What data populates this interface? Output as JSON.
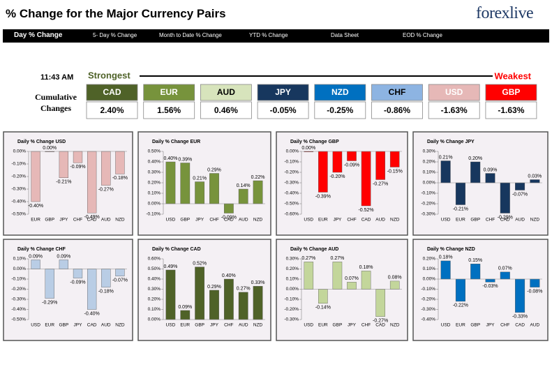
{
  "header": {
    "title": "% Change for the Major Currency Pairs",
    "logo": "forexlive"
  },
  "nav": [
    "Day % Change",
    "5- Day % Change",
    "Month to Date % Change",
    "YTD % Change",
    "Data Sheet",
    "EOD % Change"
  ],
  "summary": {
    "time": "11:43 AM",
    "strongest": "Strongest",
    "weakest": "Weakest",
    "label": "Cumulative Changes",
    "currencies": [
      {
        "name": "CAD",
        "change": "2.40%",
        "color": "#4f6228",
        "text_color": "#ffffff"
      },
      {
        "name": "EUR",
        "change": "1.56%",
        "color": "#77933c",
        "text_color": "#ffffff"
      },
      {
        "name": "AUD",
        "change": "0.46%",
        "color": "#d7e4bc",
        "text_color": "#000000"
      },
      {
        "name": "JPY",
        "change": "-0.05%",
        "color": "#17375e",
        "text_color": "#ffffff"
      },
      {
        "name": "NZD",
        "change": "-0.25%",
        "color": "#0070c0",
        "text_color": "#ffffff"
      },
      {
        "name": "CHF",
        "change": "-0.86%",
        "color": "#8db4e2",
        "text_color": "#000000"
      },
      {
        "name": "USD",
        "change": "-1.63%",
        "color": "#e6b8b7",
        "text_color": "#ffffff"
      },
      {
        "name": "GBP",
        "change": "-1.63%",
        "color": "#ff0000",
        "text_color": "#ffffff"
      }
    ]
  },
  "chart_data": [
    {
      "type": "bar",
      "title": "Daily % Change USD",
      "color": "#e6b8b7",
      "categories": [
        "EUR",
        "GBP",
        "JPY",
        "CHF",
        "CAD",
        "AUD",
        "NZD"
      ],
      "values": [
        -0.4,
        0.0,
        -0.21,
        -0.09,
        -0.49,
        -0.27,
        -0.18
      ],
      "value_labels": [
        "-0.40%",
        "0.00%",
        "-0.21%",
        "-0.09%",
        "-0.49%",
        "-0.27%",
        "-0.18%"
      ],
      "ylim": [
        -0.5,
        0
      ],
      "yticks": [
        {
          "value": 0,
          "label": "0.00%"
        },
        {
          "value": -0.1,
          "label": "-0.10%"
        },
        {
          "value": -0.2,
          "label": "-0.20%"
        },
        {
          "value": -0.3,
          "label": "-0.30%"
        },
        {
          "value": -0.4,
          "label": "-0.40%"
        },
        {
          "value": -0.5,
          "label": "-0.50%"
        }
      ]
    },
    {
      "type": "bar",
      "title": "Daily % Change EUR",
      "color": "#77933c",
      "categories": [
        "USD",
        "GBP",
        "JPY",
        "CHF",
        "CAD",
        "AUD",
        "NZD"
      ],
      "values": [
        0.4,
        0.39,
        0.21,
        0.29,
        -0.09,
        0.14,
        0.22
      ],
      "value_labels": [
        "0.40%",
        "0.39%",
        "0.21%",
        "0.29%",
        "-0.09%",
        "0.14%",
        "0.22%"
      ],
      "ylim": [
        -0.1,
        0.5
      ],
      "yticks": [
        {
          "value": 0.5,
          "label": "0.50%"
        },
        {
          "value": 0.4,
          "label": "0.40%"
        },
        {
          "value": 0.3,
          "label": "0.30%"
        },
        {
          "value": 0.2,
          "label": "0.20%"
        },
        {
          "value": 0.1,
          "label": "0.10%"
        },
        {
          "value": 0,
          "label": "0.00%"
        },
        {
          "value": -0.1,
          "label": "-0.10%"
        }
      ]
    },
    {
      "type": "bar",
      "title": "Daily % Change GBP",
      "color": "#ff0000",
      "categories": [
        "USD",
        "EUR",
        "JPY",
        "CHF",
        "CAD",
        "AUD",
        "NZD"
      ],
      "values": [
        0.0,
        -0.39,
        -0.2,
        -0.09,
        -0.52,
        -0.27,
        -0.15
      ],
      "value_labels": [
        "0.00%",
        "-0.39%",
        "-0.20%",
        "-0.09%",
        "-0.52%",
        "-0.27%",
        "-0.15%"
      ],
      "ylim": [
        -0.6,
        0
      ],
      "yticks": [
        {
          "value": 0,
          "label": "0.00%"
        },
        {
          "value": -0.1,
          "label": "-0.10%"
        },
        {
          "value": -0.2,
          "label": "-0.20%"
        },
        {
          "value": -0.3,
          "label": "-0.30%"
        },
        {
          "value": -0.4,
          "label": "-0.40%"
        },
        {
          "value": -0.5,
          "label": "-0.50%"
        },
        {
          "value": -0.6,
          "label": "-0.60%"
        }
      ]
    },
    {
      "type": "bar",
      "title": "Daily % Change JPY",
      "color": "#17375e",
      "categories": [
        "USD",
        "EUR",
        "GBP",
        "CHF",
        "CAD",
        "AUD",
        "NZD"
      ],
      "values": [
        0.21,
        -0.21,
        0.2,
        0.09,
        -0.29,
        -0.07,
        0.03
      ],
      "value_labels": [
        "0.21%",
        "-0.21%",
        "0.20%",
        "0.09%",
        "-0.29%",
        "-0.07%",
        "0.03%"
      ],
      "ylim": [
        -0.3,
        0.3
      ],
      "yticks": [
        {
          "value": 0.3,
          "label": "0.30%"
        },
        {
          "value": 0.2,
          "label": "0.20%"
        },
        {
          "value": 0.1,
          "label": "0.10%"
        },
        {
          "value": 0,
          "label": "0.00%"
        },
        {
          "value": -0.1,
          "label": "-0.10%"
        },
        {
          "value": -0.2,
          "label": "-0.20%"
        },
        {
          "value": -0.3,
          "label": "-0.30%"
        }
      ]
    },
    {
      "type": "bar",
      "title": "Daily % Change CHF",
      "color": "#b9cde5",
      "categories": [
        "USD",
        "EUR",
        "GBP",
        "JPY",
        "CAD",
        "AUD",
        "NZD"
      ],
      "values": [
        0.09,
        -0.29,
        0.09,
        -0.09,
        -0.4,
        -0.18,
        -0.07
      ],
      "value_labels": [
        "0.09%",
        "-0.29%",
        "0.09%",
        "-0.09%",
        "-0.40%",
        "-0.18%",
        "-0.07%"
      ],
      "ylim": [
        -0.5,
        0.1
      ],
      "yticks": [
        {
          "value": 0.1,
          "label": "0.10%"
        },
        {
          "value": 0,
          "label": "0.00%"
        },
        {
          "value": -0.1,
          "label": "-0.10%"
        },
        {
          "value": -0.2,
          "label": "-0.20%"
        },
        {
          "value": -0.3,
          "label": "-0.30%"
        },
        {
          "value": -0.4,
          "label": "-0.40%"
        },
        {
          "value": -0.5,
          "label": "-0.50%"
        }
      ]
    },
    {
      "type": "bar",
      "title": "Daily % Change CAD",
      "color": "#4f6228",
      "categories": [
        "USD",
        "EUR",
        "GBP",
        "JPY",
        "CHF",
        "AUD",
        "NZD"
      ],
      "values": [
        0.49,
        0.09,
        0.52,
        0.29,
        0.4,
        0.27,
        0.33
      ],
      "value_labels": [
        "0.49%",
        "0.09%",
        "0.52%",
        "0.29%",
        "0.40%",
        "0.27%",
        "0.33%"
      ],
      "ylim": [
        0,
        0.6
      ],
      "yticks": [
        {
          "value": 0.6,
          "label": "0.60%"
        },
        {
          "value": 0.5,
          "label": "0.50%"
        },
        {
          "value": 0.4,
          "label": "0.40%"
        },
        {
          "value": 0.3,
          "label": "0.30%"
        },
        {
          "value": 0.2,
          "label": "0.20%"
        },
        {
          "value": 0.1,
          "label": "0.10%"
        },
        {
          "value": 0,
          "label": "0.00%"
        }
      ]
    },
    {
      "type": "bar",
      "title": "Daily % Change AUD",
      "color": "#c3d69b",
      "categories": [
        "USD",
        "EUR",
        "GBP",
        "JPY",
        "CHF",
        "CAD",
        "NZD"
      ],
      "values": [
        0.27,
        -0.14,
        0.27,
        0.07,
        0.18,
        -0.27,
        0.08
      ],
      "value_labels": [
        "0.27%",
        "-0.14%",
        "0.27%",
        "0.07%",
        "0.18%",
        "-0.27%",
        "0.08%"
      ],
      "ylim": [
        -0.3,
        0.3
      ],
      "yticks": [
        {
          "value": 0.3,
          "label": "0.30%"
        },
        {
          "value": 0.2,
          "label": "0.20%"
        },
        {
          "value": 0.1,
          "label": "0.10%"
        },
        {
          "value": 0,
          "label": "0.00%"
        },
        {
          "value": -0.1,
          "label": "-0.10%"
        },
        {
          "value": -0.2,
          "label": "-0.20%"
        },
        {
          "value": -0.3,
          "label": "-0.30%"
        }
      ]
    },
    {
      "type": "bar",
      "title": "Daily % Change NZD",
      "color": "#0070c0",
      "categories": [
        "USD",
        "EUR",
        "GBP",
        "JPY",
        "CHF",
        "CAD",
        "AUD"
      ],
      "values": [
        0.18,
        -0.22,
        0.15,
        -0.03,
        0.07,
        -0.33,
        -0.08
      ],
      "value_labels": [
        "0.18%",
        "-0.22%",
        "0.15%",
        "-0.03%",
        "0.07%",
        "-0.33%",
        "-0.08%"
      ],
      "ylim": [
        -0.4,
        0.2
      ],
      "yticks": [
        {
          "value": 0.2,
          "label": "0.20%"
        },
        {
          "value": 0.1,
          "label": "0.10%"
        },
        {
          "value": 0,
          "label": "0.00%"
        },
        {
          "value": -0.1,
          "label": "-0.10%"
        },
        {
          "value": -0.2,
          "label": "-0.20%"
        },
        {
          "value": -0.3,
          "label": "-0.30%"
        },
        {
          "value": -0.4,
          "label": "-0.40%"
        }
      ]
    }
  ]
}
